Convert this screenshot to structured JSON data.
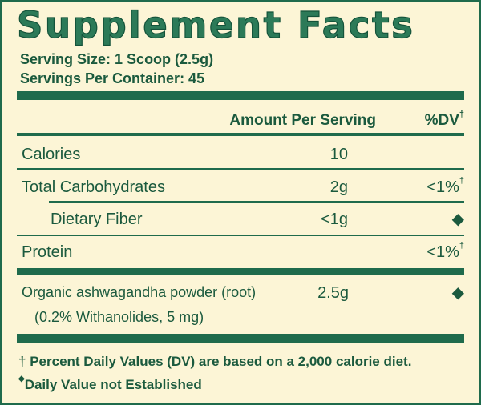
{
  "title": "Supplement Facts",
  "serving_size": "Serving Size: 1 Scoop (2.5g)",
  "servings_per_container": "Servings Per Container: 45",
  "header": {
    "amount": "Amount Per Serving",
    "dv": {
      "text": "%DV",
      "mark": "†"
    }
  },
  "rows": [
    {
      "label": "Calories",
      "amount": "10"
    },
    {
      "label": "Total Carbohydrates",
      "amount": "2g",
      "dv": {
        "text": "<1%",
        "mark": "†"
      }
    },
    {
      "label": "Dietary Fiber",
      "amount": "<1g",
      "dv": {
        "text": "◆"
      }
    },
    {
      "label": "Protein",
      "dv": {
        "text": "<1%",
        "mark": "†"
      }
    },
    {
      "label": "Organic ashwagandha powder (root)",
      "sublabel": "(0.2% Withanolides, 5 mg)",
      "amount": "2.5g",
      "dv": {
        "text": "◆"
      }
    }
  ],
  "footnotes": [
    {
      "mark": "†",
      "text": "Percent Daily Values (DV) are based on a 2,000 calorie diet."
    },
    {
      "mark": "◆",
      "text": "Daily Value not Established"
    }
  ]
}
